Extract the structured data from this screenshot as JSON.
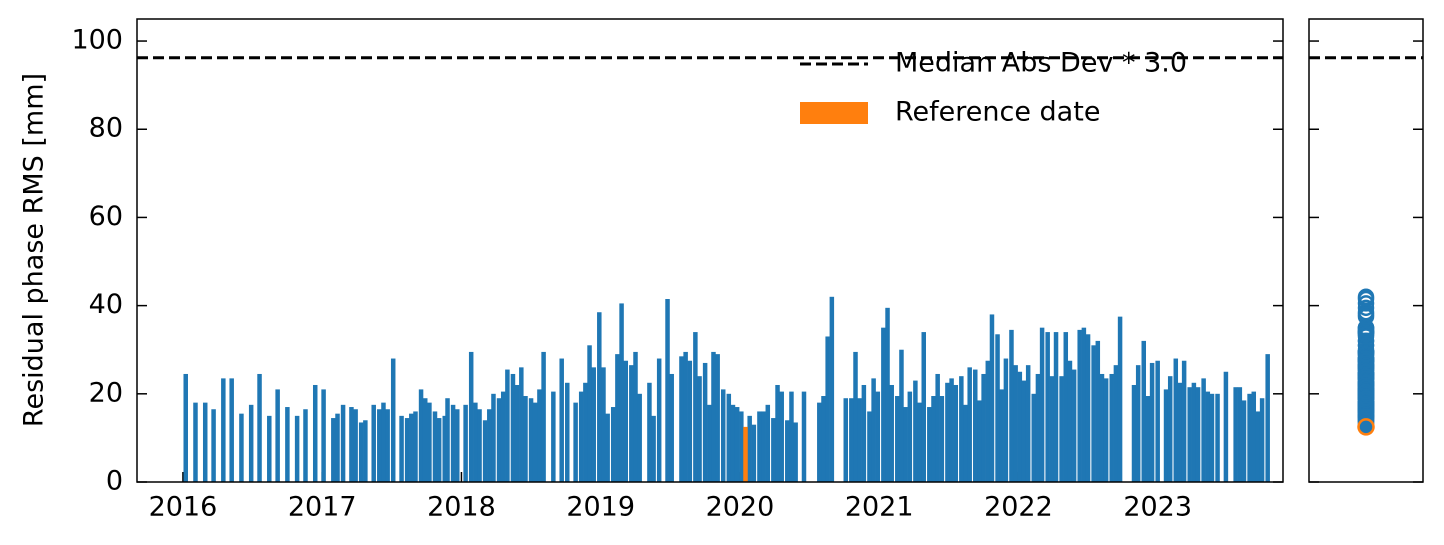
{
  "chart_data": {
    "type": "bar",
    "ylabel": "Residual phase RMS [mm]",
    "xlim": [
      2015.67,
      2023.9
    ],
    "xticks": [
      2016,
      2017,
      2018,
      2019,
      2020,
      2021,
      2022,
      2023
    ],
    "ylim": [
      0,
      105
    ],
    "yticks": [
      0,
      20,
      40,
      60,
      80,
      100
    ],
    "color": "#1f77b4",
    "x": [
      2016.02,
      2016.09,
      2016.16,
      2016.22,
      2016.29,
      2016.35,
      2016.42,
      2016.49,
      2016.55,
      2016.62,
      2016.68,
      2016.75,
      2016.82,
      2016.88,
      2016.95,
      2017.01,
      2017.08,
      2017.11,
      2017.15,
      2017.21,
      2017.24,
      2017.28,
      2017.31,
      2017.37,
      2017.41,
      2017.44,
      2017.47,
      2017.51,
      2017.57,
      2017.61,
      2017.64,
      2017.67,
      2017.71,
      2017.74,
      2017.77,
      2017.81,
      2017.84,
      2017.88,
      2017.9,
      2017.94,
      2017.97,
      2018.03,
      2018.07,
      2018.1,
      2018.13,
      2018.17,
      2018.2,
      2018.23,
      2018.27,
      2018.3,
      2018.33,
      2018.37,
      2018.4,
      2018.43,
      2018.46,
      2018.5,
      2018.53,
      2018.56,
      2018.59,
      2018.66,
      2018.72,
      2018.76,
      2018.82,
      2018.86,
      2018.89,
      2018.92,
      2018.95,
      2018.99,
      2019.02,
      2019.05,
      2019.09,
      2019.12,
      2019.15,
      2019.18,
      2019.22,
      2019.25,
      2019.28,
      2019.35,
      2019.38,
      2019.42,
      2019.48,
      2019.51,
      2019.58,
      2019.61,
      2019.64,
      2019.68,
      2019.71,
      2019.75,
      2019.78,
      2019.81,
      2019.84,
      2019.88,
      2019.92,
      2019.95,
      2019.98,
      2020.01,
      2020.07,
      2020.1,
      2020.14,
      2020.17,
      2020.2,
      2020.24,
      2020.27,
      2020.3,
      2020.34,
      2020.37,
      2020.4,
      2020.46,
      2020.57,
      2020.6,
      2020.63,
      2020.66,
      2020.76,
      2020.8,
      2020.83,
      2020.86,
      2020.89,
      2020.93,
      2020.96,
      2020.99,
      2021.03,
      2021.06,
      2021.09,
      2021.13,
      2021.16,
      2021.19,
      2021.22,
      2021.26,
      2021.29,
      2021.32,
      2021.36,
      2021.39,
      2021.42,
      2021.45,
      2021.49,
      2021.52,
      2021.55,
      2021.59,
      2021.62,
      2021.65,
      2021.69,
      2021.72,
      2021.75,
      2021.78,
      2021.81,
      2021.85,
      2021.88,
      2021.91,
      2021.95,
      2021.98,
      2022.01,
      2022.04,
      2022.07,
      2022.11,
      2022.14,
      2022.17,
      2022.21,
      2022.24,
      2022.27,
      2022.31,
      2022.34,
      2022.37,
      2022.4,
      2022.44,
      2022.47,
      2022.5,
      2022.54,
      2022.57,
      2022.6,
      2022.63,
      2022.67,
      2022.7,
      2022.73,
      2022.83,
      2022.86,
      2022.9,
      2022.93,
      2022.96,
      2023.0,
      2023.06,
      2023.09,
      2023.13,
      2023.16,
      2023.19,
      2023.23,
      2023.26,
      2023.29,
      2023.33,
      2023.36,
      2023.39,
      2023.43,
      2023.49,
      2023.56,
      2023.59,
      2023.62,
      2023.66,
      2023.69,
      2023.72,
      2023.75,
      2023.79
    ],
    "values": [
      24.5,
      18,
      18,
      16.5,
      23.5,
      23.5,
      15.5,
      17.5,
      24.5,
      15,
      21,
      17,
      15,
      16.5,
      22,
      21,
      14.5,
      15.5,
      17.5,
      17,
      16.5,
      13.5,
      14,
      17.5,
      16.5,
      18,
      16.5,
      28,
      15,
      14.5,
      15.5,
      16,
      21,
      19,
      18,
      16,
      14.5,
      15,
      19,
      17.5,
      16.5,
      17.5,
      29.5,
      18,
      16.5,
      14,
      16.5,
      20,
      19,
      20.5,
      25.5,
      24.5,
      22,
      26,
      19.5,
      19,
      18,
      21,
      29.5,
      20.5,
      28,
      22.5,
      18,
      20.5,
      22.5,
      31,
      26,
      38.5,
      26,
      15.5,
      17,
      29,
      40.5,
      27.5,
      26.5,
      29.5,
      20,
      22.5,
      15,
      28,
      41.5,
      24.5,
      28.5,
      29.5,
      27.5,
      34,
      24,
      27,
      17.5,
      29.5,
      29,
      21,
      20,
      17.5,
      17,
      16,
      15,
      13,
      16,
      16,
      17.5,
      14.5,
      22,
      20.5,
      14,
      20.5,
      13.5,
      20.5,
      18,
      19.5,
      33,
      42,
      19,
      19,
      29.5,
      19,
      22,
      16,
      23.5,
      20.5,
      35,
      39.5,
      22,
      19.5,
      30,
      17,
      20.5,
      23,
      18,
      34,
      17,
      19.5,
      24.5,
      19.5,
      22.5,
      23.5,
      22,
      24,
      17.5,
      26,
      25.5,
      18.5,
      24.5,
      27.5,
      38,
      33.5,
      21,
      28,
      34.5,
      26.5,
      25,
      23,
      26.5,
      20,
      24.5,
      35,
      34,
      24,
      34,
      24,
      34,
      27.5,
      25.5,
      34.5,
      35,
      33.5,
      31,
      32,
      24.5,
      23.5,
      24.5,
      26.5,
      37.5,
      22,
      26.5,
      32,
      19.5,
      27,
      27.5,
      21,
      24,
      28,
      22.5,
      27.5,
      21.5,
      22.5,
      21.5,
      23.5,
      20.5,
      20,
      20,
      25,
      21.5,
      21.5,
      18.5,
      20,
      20.5,
      16,
      19,
      29
    ],
    "reference": {
      "name": "Reference date",
      "color": "#ff7f0e",
      "x": 2020.04,
      "value": 12.5
    },
    "threshold": {
      "name": "Median Abs Dev * 3.0",
      "color": "#000000",
      "value": 96.2
    },
    "legend": "upper right"
  }
}
